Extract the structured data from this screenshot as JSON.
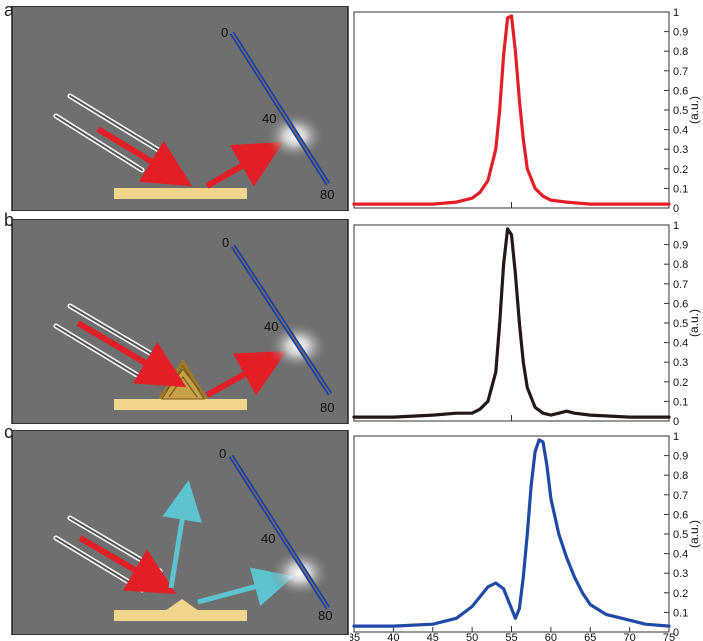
{
  "panels": [
    {
      "letter": "a",
      "scale_labels": [
        "0",
        "40",
        "80"
      ]
    },
    {
      "letter": "b",
      "scale_labels": [
        "0",
        "40",
        "80"
      ]
    },
    {
      "letter": "c",
      "scale_labels": [
        "0",
        "40",
        "80"
      ]
    }
  ],
  "colors": {
    "background_gray": "#6f6f6f",
    "gold_substrate": "#f2d48a",
    "red_beam": "#e41e26",
    "cyan_beam": "#5cc3cf",
    "blue_detector": "#1f3f9e",
    "chart_red": "#e41e26",
    "chart_black": "#231815",
    "chart_blue": "#1f4aa8"
  },
  "chart_data": [
    {
      "type": "line",
      "ylabel": "(a.u.)",
      "ylim": [
        0,
        1
      ],
      "xlim": [
        35,
        75
      ],
      "y_ticks": [
        "0",
        "0.1",
        "0.2",
        "0.3",
        "0.4",
        "0.5",
        "0.6",
        "0.7",
        "0.8",
        "0.9",
        "1"
      ],
      "series": [
        {
          "color": "#e41e26",
          "x": [
            35,
            40,
            45,
            48,
            50,
            51,
            52,
            53,
            53.5,
            54,
            54.5,
            55,
            55.5,
            56,
            56.5,
            57,
            58,
            59,
            60,
            62,
            65,
            70,
            75
          ],
          "y": [
            0.02,
            0.02,
            0.02,
            0.03,
            0.05,
            0.08,
            0.14,
            0.3,
            0.5,
            0.78,
            0.97,
            0.98,
            0.8,
            0.55,
            0.35,
            0.2,
            0.1,
            0.06,
            0.04,
            0.03,
            0.02,
            0.02,
            0.02
          ]
        }
      ]
    },
    {
      "type": "line",
      "ylabel": "(a.u.)",
      "ylim": [
        0,
        1
      ],
      "xlim": [
        35,
        75
      ],
      "y_ticks": [
        "0",
        "0.1",
        "0.2",
        "0.3",
        "0.4",
        "0.5",
        "0.6",
        "0.7",
        "0.8",
        "0.9",
        "1"
      ],
      "series": [
        {
          "color": "#231815",
          "x": [
            35,
            40,
            45,
            48,
            50,
            51,
            52,
            53,
            53.5,
            54,
            54.5,
            55,
            55.5,
            56,
            56.5,
            57,
            58,
            59,
            60,
            61,
            62,
            63,
            65,
            70,
            75
          ],
          "y": [
            0.02,
            0.02,
            0.03,
            0.04,
            0.04,
            0.06,
            0.1,
            0.25,
            0.5,
            0.8,
            0.98,
            0.95,
            0.75,
            0.5,
            0.3,
            0.17,
            0.07,
            0.04,
            0.03,
            0.04,
            0.05,
            0.04,
            0.03,
            0.02,
            0.02
          ]
        }
      ]
    },
    {
      "type": "line",
      "ylabel": "(a.u.)",
      "ylim": [
        0,
        1
      ],
      "xlim": [
        35,
        75
      ],
      "x_ticks": [
        "35",
        "40",
        "45",
        "50",
        "55",
        "60",
        "65",
        "70",
        "75"
      ],
      "y_ticks": [
        "0",
        "0.1",
        "0.2",
        "0.3",
        "0.4",
        "0.5",
        "0.6",
        "0.7",
        "0.8",
        "0.9",
        "1"
      ],
      "series": [
        {
          "color": "#1f4aa8",
          "x": [
            35,
            40,
            45,
            48,
            50,
            51,
            52,
            53,
            54,
            55,
            55.5,
            56,
            56.5,
            57,
            57.5,
            58,
            58.5,
            59,
            59.5,
            60,
            61,
            62,
            63,
            64,
            65,
            67,
            70,
            72,
            75
          ],
          "y": [
            0.03,
            0.03,
            0.04,
            0.07,
            0.13,
            0.18,
            0.23,
            0.25,
            0.22,
            0.12,
            0.07,
            0.12,
            0.28,
            0.5,
            0.75,
            0.92,
            0.98,
            0.97,
            0.85,
            0.68,
            0.5,
            0.38,
            0.28,
            0.2,
            0.14,
            0.09,
            0.06,
            0.04,
            0.03
          ]
        }
      ]
    }
  ]
}
